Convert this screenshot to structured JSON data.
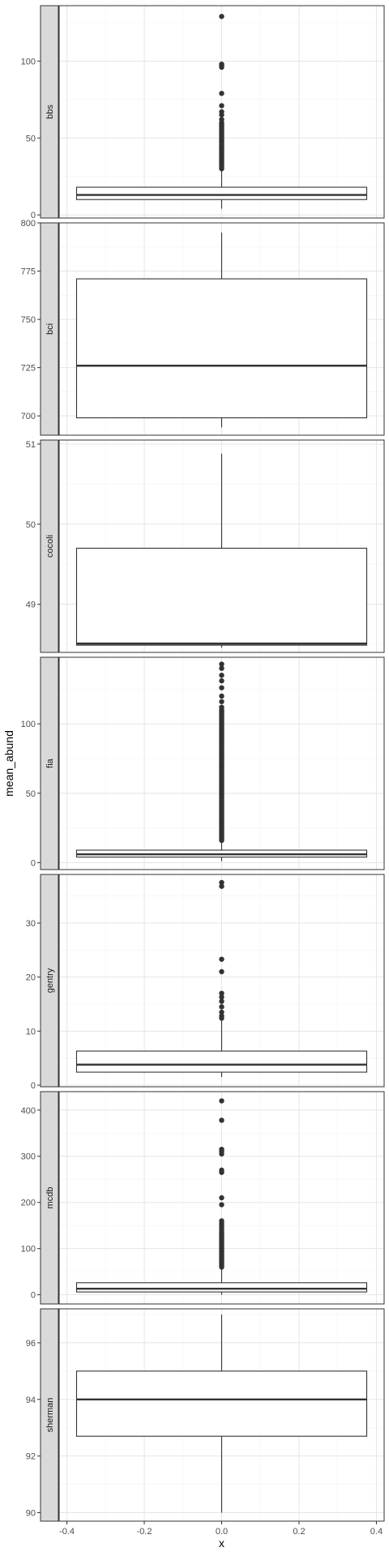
{
  "chart_data": {
    "type": "boxplot",
    "xlabel": "x",
    "ylabel": "mean_abund",
    "xlim": [
      -0.42,
      0.42
    ],
    "x_ticks": [
      -0.4,
      -0.2,
      0.0,
      0.2,
      0.4
    ],
    "x_tick_labels": [
      "-0.4",
      "-0.2",
      "0.0",
      "0.2",
      "0.4"
    ],
    "box_x_range": [
      -0.375,
      0.375
    ],
    "grid": true,
    "facet_layout": "vertical",
    "panels": [
      {
        "name": "bbs",
        "ylim": [
          -2,
          136
        ],
        "y_ticks": [
          0,
          50,
          100
        ],
        "y_tick_labels": [
          "0",
          "50",
          "100"
        ],
        "box": {
          "lower_whisker": 4,
          "q1": 10,
          "median": 13,
          "q3": 18,
          "upper_whisker": 30
        },
        "outliers": [
          30,
          31,
          32,
          33,
          34,
          35,
          36,
          37,
          38,
          39,
          40,
          41,
          42,
          43,
          44,
          45,
          46,
          47,
          48,
          49,
          50,
          51,
          52,
          53,
          54,
          55,
          56,
          57,
          58,
          59,
          60,
          62,
          65,
          67,
          71,
          79,
          96,
          97,
          98,
          129
        ]
      },
      {
        "name": "bci",
        "ylim": [
          690,
          800
        ],
        "y_ticks": [
          700,
          725,
          750,
          775,
          800
        ],
        "y_tick_labels": [
          "700",
          "725",
          "750",
          "775",
          "800"
        ],
        "box": {
          "lower_whisker": 694,
          "q1": 699,
          "median": 726,
          "q3": 771,
          "upper_whisker": 795
        },
        "outliers": []
      },
      {
        "name": "cocoli",
        "ylim": [
          48.4,
          51.05
        ],
        "y_ticks": [
          49,
          50,
          51
        ],
        "y_tick_labels": [
          "49",
          "50",
          "51"
        ],
        "box": {
          "lower_whisker": 48.46,
          "q1": 48.49,
          "median": 48.51,
          "q3": 49.7,
          "upper_whisker": 50.88
        },
        "outliers": []
      },
      {
        "name": "fia",
        "ylim": [
          -5,
          148
        ],
        "y_ticks": [
          0,
          50,
          100
        ],
        "y_tick_labels": [
          "0",
          "50",
          "100"
        ],
        "box": {
          "lower_whisker": 1,
          "q1": 4,
          "median": 6,
          "q3": 9,
          "upper_whisker": 16
        },
        "outliers": [
          16,
          17,
          18,
          19,
          20,
          21,
          22,
          23,
          24,
          25,
          26,
          27,
          28,
          29,
          30,
          31,
          32,
          33,
          34,
          35,
          36,
          37,
          38,
          39,
          40,
          41,
          42,
          43,
          44,
          45,
          46,
          47,
          48,
          49,
          50,
          51,
          52,
          53,
          54,
          55,
          56,
          57,
          58,
          59,
          60,
          61,
          62,
          63,
          64,
          65,
          66,
          67,
          68,
          69,
          70,
          71,
          72,
          73,
          74,
          75,
          76,
          77,
          78,
          79,
          80,
          81,
          82,
          83,
          84,
          85,
          86,
          87,
          88,
          89,
          90,
          91,
          92,
          93,
          94,
          95,
          96,
          97,
          98,
          99,
          100,
          101,
          102,
          103,
          104,
          105,
          106,
          107,
          108,
          109,
          110,
          112,
          116,
          120,
          126,
          131,
          135,
          140,
          143
        ]
      },
      {
        "name": "gentry",
        "ylim": [
          -0.3,
          39
        ],
        "y_ticks": [
          0,
          10,
          20,
          30
        ],
        "y_tick_labels": [
          "0",
          "10",
          "20",
          "30"
        ],
        "box": {
          "lower_whisker": 1.5,
          "q1": 2.4,
          "median": 3.8,
          "q3": 6.3,
          "upper_whisker": 12
        },
        "outliers": [
          12.4,
          12.8,
          13.5,
          14.5,
          15.5,
          16.3,
          17,
          21,
          23.3,
          36.8,
          37.5
        ]
      },
      {
        "name": "mcdb",
        "ylim": [
          -20,
          440
        ],
        "y_ticks": [
          0,
          100,
          200,
          300,
          400
        ],
        "y_tick_labels": [
          "0",
          "100",
          "200",
          "300",
          "400"
        ],
        "box": {
          "lower_whisker": 0,
          "q1": 6,
          "median": 13,
          "q3": 26,
          "upper_whisker": 60
        },
        "outliers": [
          60,
          63,
          66,
          70,
          73,
          76,
          80,
          83,
          86,
          90,
          93,
          96,
          100,
          103,
          106,
          110,
          113,
          116,
          120,
          123,
          126,
          130,
          135,
          140,
          145,
          150,
          155,
          160,
          195,
          210,
          265,
          270,
          305,
          310,
          315,
          378,
          420
        ]
      },
      {
        "name": "sherman",
        "ylim": [
          89.7,
          97.2
        ],
        "y_ticks": [
          90,
          92,
          94,
          96
        ],
        "y_tick_labels": [
          "90",
          "92",
          "94",
          "96"
        ],
        "box": {
          "lower_whisker": 90,
          "q1": 92.7,
          "median": 94,
          "q3": 95,
          "upper_whisker": 97
        }
      }
    ]
  }
}
